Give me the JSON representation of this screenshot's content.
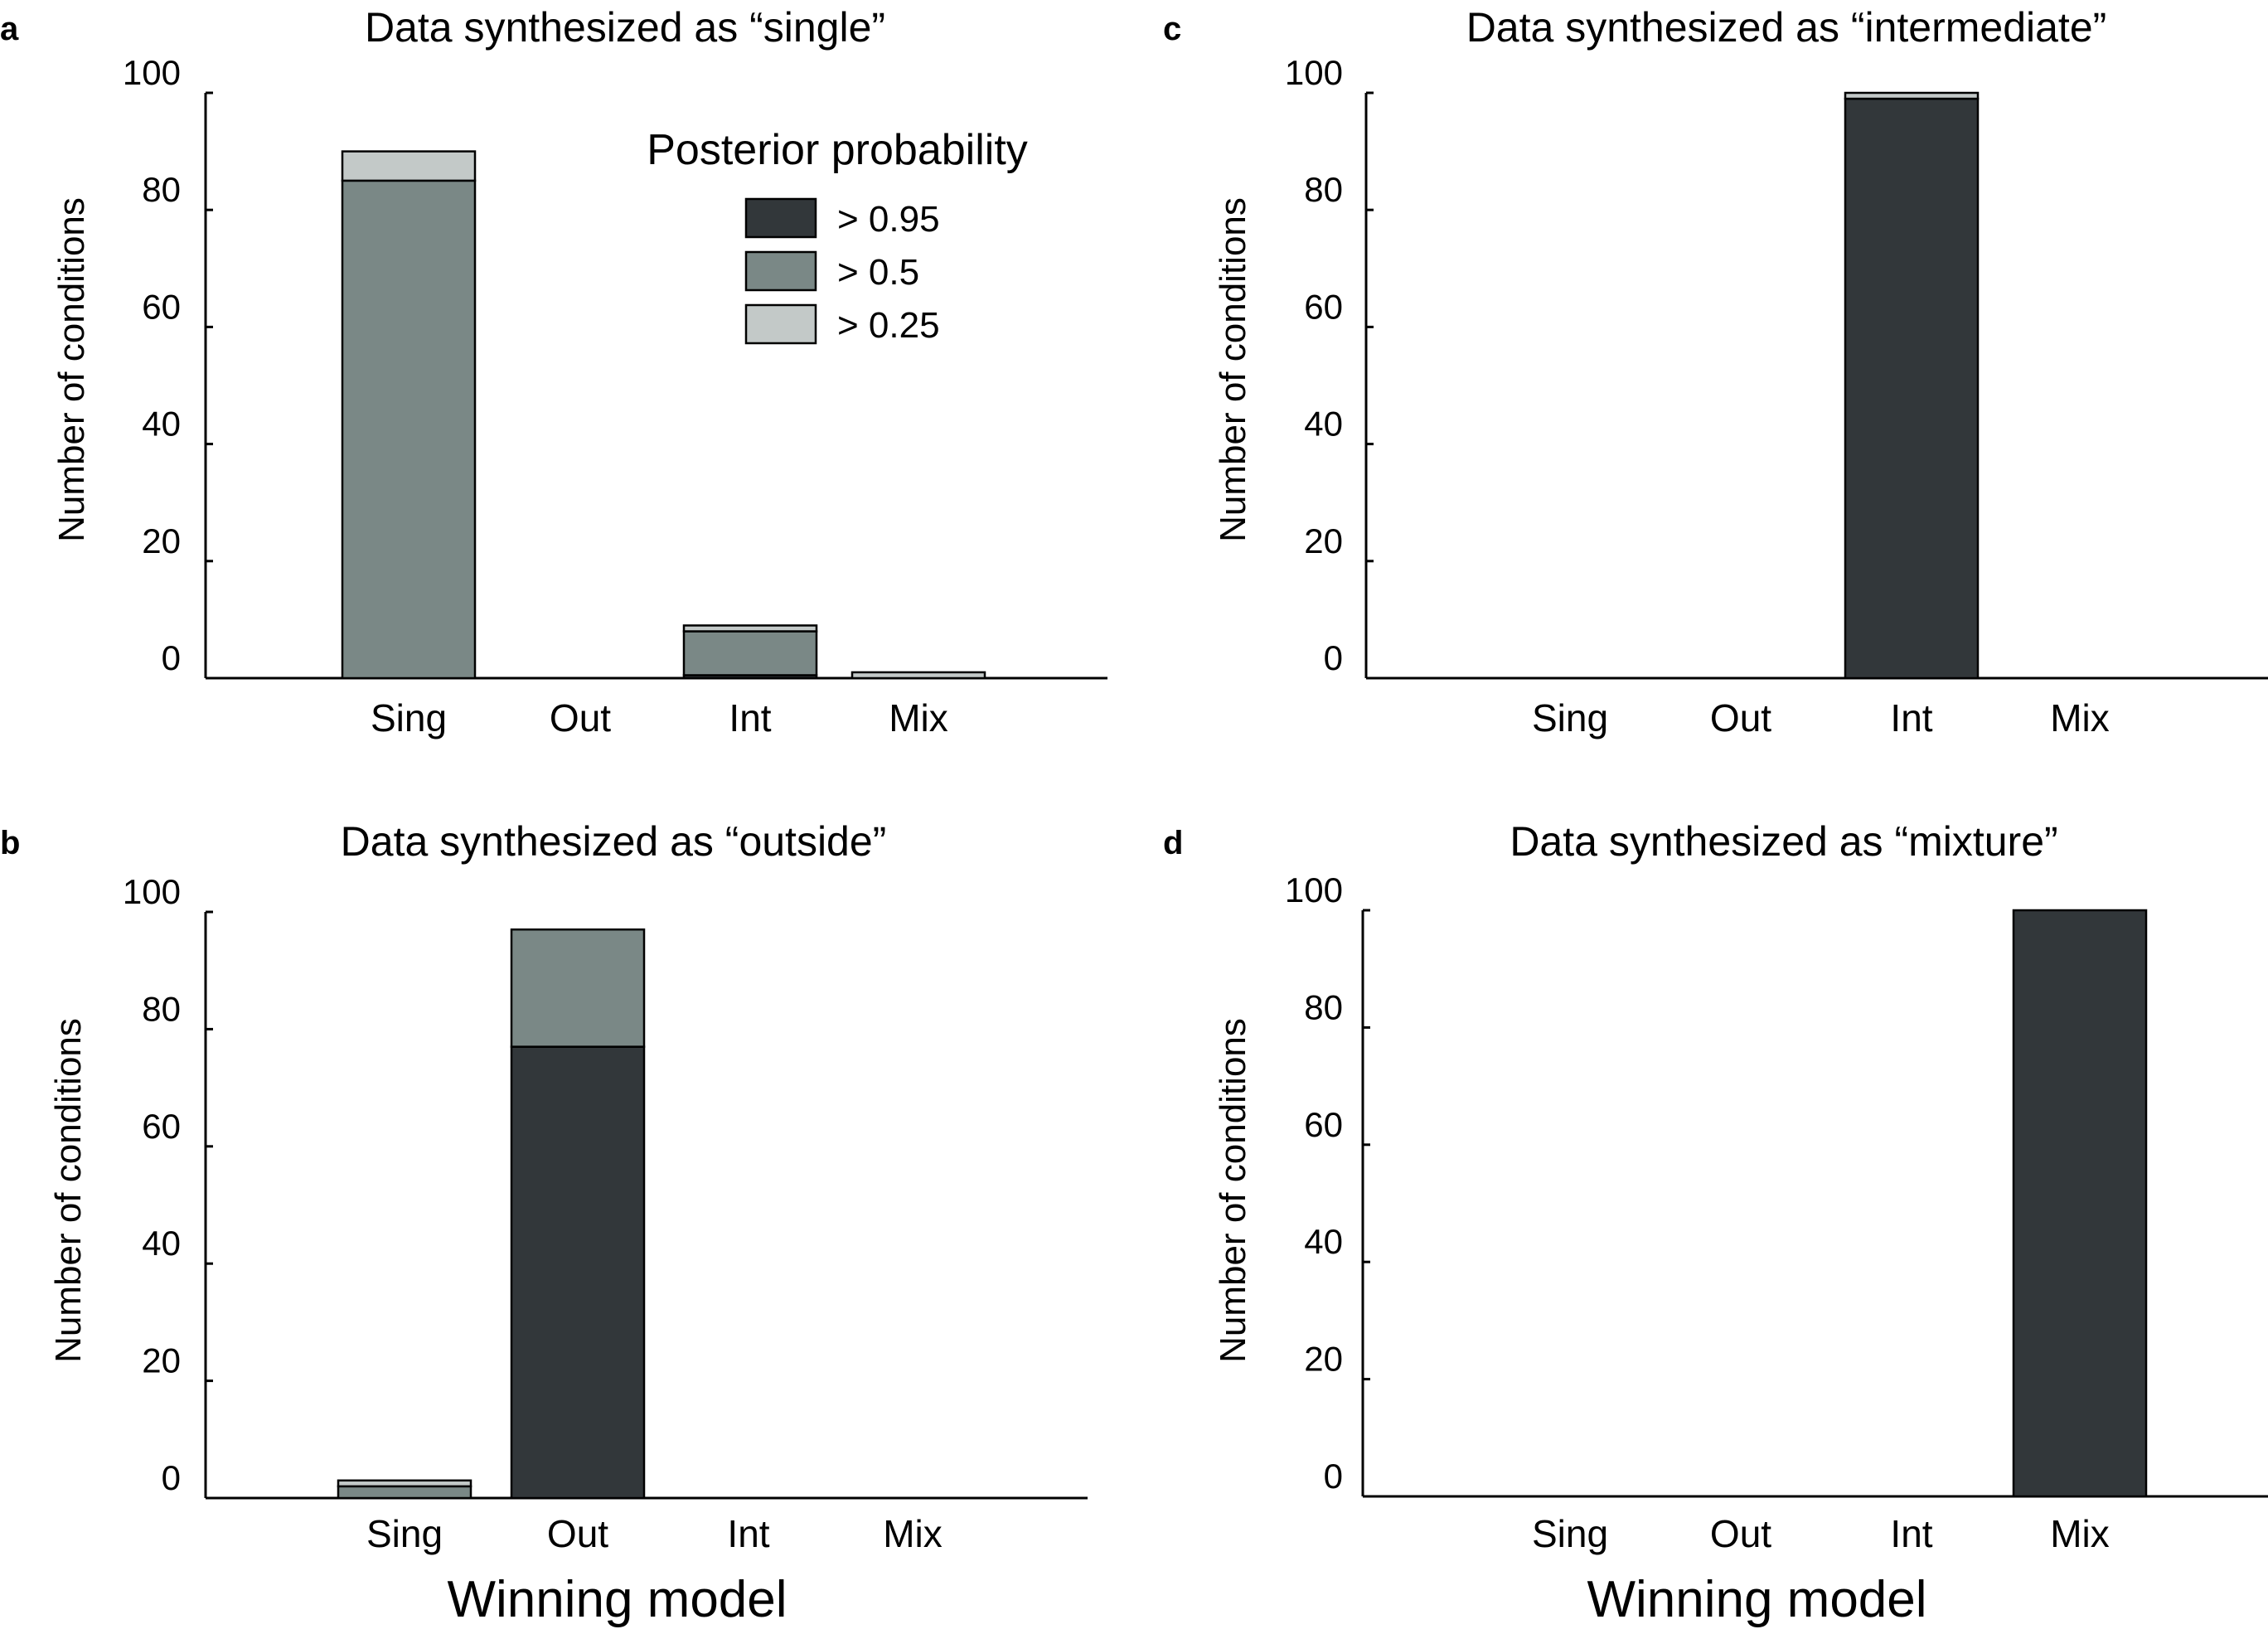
{
  "colors": {
    "p95": "#32373a",
    "p50": "#7a8886",
    "p25": "#c3c9c8"
  },
  "legend": {
    "title": "Posterior probability",
    "items": [
      {
        "key": "p95",
        "label": "> 0.95"
      },
      {
        "key": "p50",
        "label": "> 0.5"
      },
      {
        "key": "p25",
        "label": "> 0.25"
      }
    ]
  },
  "xlabel": "Winning model",
  "chart_data": [
    {
      "type": "bar",
      "stacked": true,
      "panel": "a",
      "title": "Data synthesized as “single”",
      "xlabel": "",
      "ylabel": "Number of conditions",
      "ylim": [
        0,
        100
      ],
      "yticks": [
        0,
        20,
        40,
        60,
        80,
        100
      ],
      "categories": [
        "Sing",
        "Out",
        "Int",
        "Mix"
      ],
      "series": [
        {
          "name": "> 0.95",
          "key": "p95",
          "values": [
            0,
            0,
            0.5,
            0
          ]
        },
        {
          "name": "> 0.5",
          "key": "p50",
          "values": [
            85,
            0,
            7.5,
            0
          ]
        },
        {
          "name": "> 0.25",
          "key": "p25",
          "values": [
            5,
            0,
            1,
            1
          ]
        }
      ]
    },
    {
      "type": "bar",
      "stacked": true,
      "panel": "b",
      "title": "Data synthesized as “outside”",
      "xlabel": "Winning model",
      "ylabel": "Number of conditions",
      "ylim": [
        0,
        100
      ],
      "yticks": [
        0,
        20,
        40,
        60,
        80,
        100
      ],
      "categories": [
        "Sing",
        "Out",
        "Int",
        "Mix"
      ],
      "series": [
        {
          "name": "> 0.95",
          "key": "p95",
          "values": [
            0,
            77,
            0,
            0
          ]
        },
        {
          "name": "> 0.5",
          "key": "p50",
          "values": [
            2,
            20,
            0,
            0
          ]
        },
        {
          "name": "> 0.25",
          "key": "p25",
          "values": [
            1,
            0,
            0,
            0
          ]
        }
      ]
    },
    {
      "type": "bar",
      "stacked": true,
      "panel": "c",
      "title": "Data synthesized as “intermediate”",
      "xlabel": "",
      "ylabel": "Number of conditions",
      "ylim": [
        0,
        100
      ],
      "yticks": [
        0,
        20,
        40,
        60,
        80,
        100
      ],
      "categories": [
        "Sing",
        "Out",
        "Int",
        "Mix"
      ],
      "series": [
        {
          "name": "> 0.95",
          "key": "p95",
          "values": [
            0,
            0,
            99,
            0
          ]
        },
        {
          "name": "> 0.5",
          "key": "p50",
          "values": [
            0,
            0,
            0,
            0
          ]
        },
        {
          "name": "> 0.25",
          "key": "p25",
          "values": [
            0,
            0,
            1,
            0
          ]
        }
      ]
    },
    {
      "type": "bar",
      "stacked": true,
      "panel": "d",
      "title": "Data synthesized as “mixture”",
      "xlabel": "Winning model",
      "ylabel": "Number of conditions",
      "ylim": [
        0,
        100
      ],
      "yticks": [
        0,
        20,
        40,
        60,
        80,
        100
      ],
      "categories": [
        "Sing",
        "Out",
        "Int",
        "Mix"
      ],
      "series": [
        {
          "name": "> 0.95",
          "key": "p95",
          "values": [
            0,
            0,
            0,
            100
          ]
        },
        {
          "name": "> 0.5",
          "key": "p50",
          "values": [
            0,
            0,
            0,
            0
          ]
        },
        {
          "name": "> 0.25",
          "key": "p25",
          "values": [
            0,
            0,
            0,
            0
          ]
        }
      ]
    }
  ]
}
